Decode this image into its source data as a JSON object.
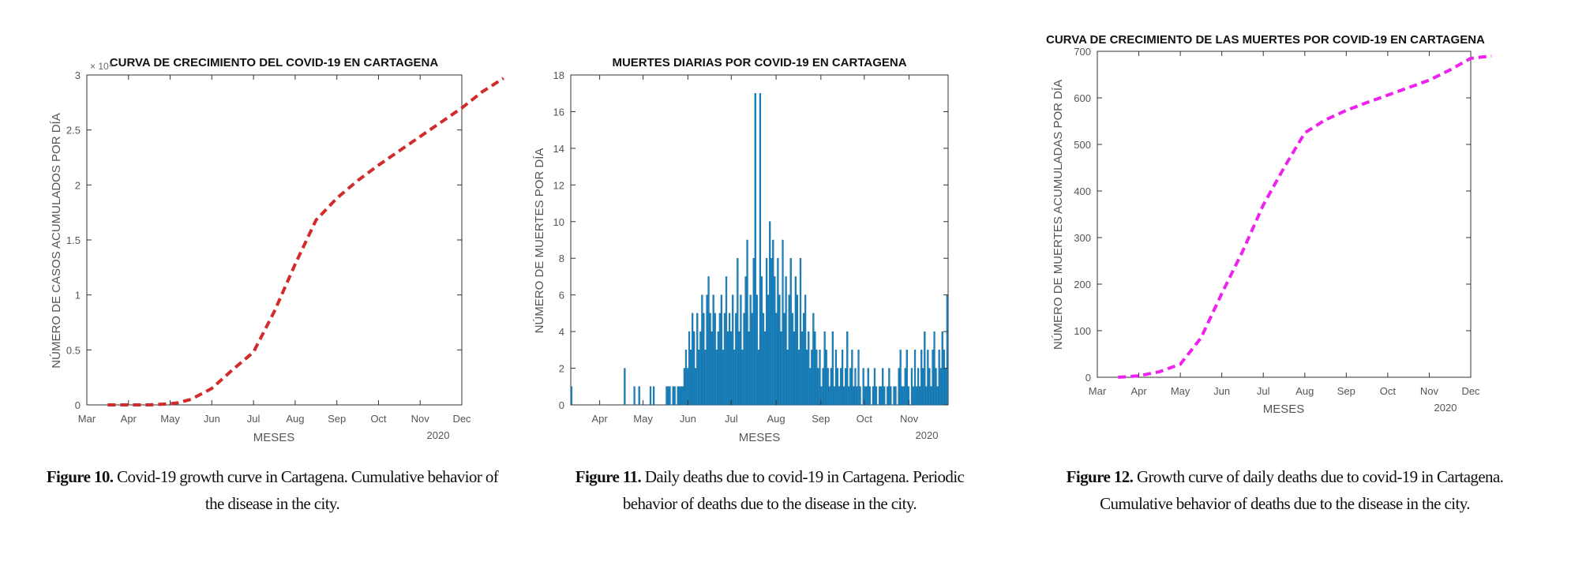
{
  "chart_data": [
    {
      "type": "line",
      "title": "CURVA DE CRECIMIENTO DEL COVID-19 EN CARTAGENA",
      "xlabel": "MESES",
      "ylabel": "NÚMERO DE CASOS ACUMULADOS POR DÍA",
      "x_ticks": [
        "Mar",
        "Apr",
        "May",
        "Jun",
        "Jul",
        "Aug",
        "Sep",
        "Oct",
        "Nov",
        "Dec"
      ],
      "x_year": "2020",
      "y_ticks": [
        "0",
        "0.5",
        "1",
        "1.5",
        "2",
        "2.5",
        "3"
      ],
      "y_exponent": "× 10⁴",
      "ylim": [
        0,
        3
      ],
      "color": "#d22b2b",
      "line_style": "dashed",
      "grid": false,
      "x": [
        0.5,
        1,
        1.5,
        2,
        2.2,
        2.5,
        3,
        3.5,
        4,
        4.5,
        5,
        5.5,
        6,
        6.5,
        7,
        7.5,
        8,
        8.5,
        9,
        9.5,
        10
      ],
      "y": [
        0,
        0,
        0,
        0.01,
        0.02,
        0.05,
        0.15,
        0.32,
        0.48,
        0.85,
        1.28,
        1.68,
        1.88,
        2.04,
        2.18,
        2.31,
        2.44,
        2.57,
        2.7,
        2.85,
        2.97
      ]
    },
    {
      "type": "bar",
      "title": "MUERTES DIARIAS POR COVID-19 EN CARTAGENA",
      "xlabel": "MESES",
      "ylabel": "NÚMERO DE MUERTES POR DÍA",
      "x_ticks": [
        "Apr",
        "May",
        "Jun",
        "Jul",
        "Aug",
        "Sep",
        "Oct",
        "Nov"
      ],
      "x_year": "2020",
      "y_ticks": [
        "0",
        "2",
        "4",
        "6",
        "8",
        "10",
        "12",
        "14",
        "16",
        "18"
      ],
      "ylim": [
        0,
        18
      ],
      "color": "#1a86c4",
      "grid": false,
      "values": [
        1,
        0,
        0,
        0,
        0,
        0,
        0,
        0,
        0,
        0,
        0,
        0,
        0,
        0,
        0,
        0,
        0,
        0,
        0,
        0,
        0,
        0,
        0,
        0,
        0,
        0,
        0,
        0,
        0,
        0,
        0,
        0,
        0,
        2,
        0,
        0,
        0,
        0,
        0,
        1,
        0,
        0,
        1,
        0,
        0,
        0,
        0,
        0,
        0,
        1,
        0,
        1,
        0,
        0,
        0,
        0,
        0,
        0,
        0,
        1,
        1,
        1,
        0,
        1,
        1,
        0,
        1,
        1,
        1,
        1,
        2,
        3,
        2,
        4,
        3,
        5,
        4,
        2,
        5,
        3,
        4,
        6,
        5,
        3,
        6,
        7,
        5,
        4,
        6,
        5,
        3,
        4,
        5,
        6,
        3,
        5,
        7,
        4,
        5,
        4,
        6,
        3,
        5,
        8,
        4,
        6,
        3,
        5,
        7,
        9,
        4,
        6,
        5,
        8,
        17,
        6,
        3,
        17,
        7,
        5,
        4,
        8,
        6,
        10,
        8,
        9,
        7,
        5,
        8,
        6,
        4,
        9,
        5,
        7,
        3,
        6,
        8,
        5,
        4,
        7,
        6,
        3,
        8,
        4,
        5,
        6,
        3,
        4,
        2,
        3,
        5,
        4,
        3,
        2,
        3,
        1,
        2,
        4,
        3,
        2,
        1,
        2,
        4,
        1,
        3,
        2,
        1,
        2,
        3,
        1,
        2,
        4,
        1,
        2,
        3,
        1,
        2,
        1,
        3,
        1,
        0,
        2,
        1,
        1,
        2,
        1,
        0,
        1,
        2,
        1,
        0,
        1,
        1,
        2,
        1,
        0,
        1,
        2,
        1,
        0,
        1,
        1,
        0,
        2,
        3,
        1,
        1,
        2,
        3,
        1,
        0,
        2,
        1,
        3,
        1,
        2,
        1,
        3,
        2,
        4,
        1,
        3,
        2,
        1,
        3,
        4,
        2,
        1,
        3,
        2,
        4,
        3,
        2,
        6
      ],
      "start": "2020-03-12",
      "end": "2020-11-28"
    },
    {
      "type": "line",
      "title": "CURVA DE CRECIMIENTO DE LAS MUERTES POR COVID-19 EN CARTAGENA",
      "xlabel": "MESES",
      "ylabel": "NÚMERO DE MUERTES ACUMULADAS POR DÍA",
      "x_ticks": [
        "Mar",
        "Apr",
        "May",
        "Jun",
        "Jul",
        "Aug",
        "Sep",
        "Oct",
        "Nov",
        "Dec"
      ],
      "x_year": "2020",
      "y_ticks": [
        "0",
        "100",
        "200",
        "300",
        "400",
        "500",
        "600",
        "700"
      ],
      "ylim": [
        0,
        700
      ],
      "color": "#ee22ee",
      "line_style": "dashed",
      "grid": false,
      "x": [
        0.5,
        1,
        1.5,
        2,
        2.5,
        3,
        3.5,
        4,
        4.5,
        5,
        5.5,
        6,
        6.5,
        7,
        7.5,
        8,
        8.5,
        9,
        9.5
      ],
      "y": [
        0,
        3,
        12,
        28,
        85,
        180,
        270,
        370,
        450,
        525,
        553,
        573,
        590,
        606,
        622,
        638,
        660,
        685,
        690
      ]
    }
  ],
  "captions": [
    {
      "label": "Figure 10.",
      "text": "Covid-19 growth curve in Cartagena. Cumulative behavior of the disease in the city."
    },
    {
      "label": "Figure 11.",
      "text": "Daily deaths due to covid-19 in Cartagena. Periodic behavior of deaths due to the disease in the city."
    },
    {
      "label": "Figure 12.",
      "text": "Growth curve of daily deaths due to covid-19 in Cartagena. Cumulative behavior of deaths due to the disease in the city."
    }
  ]
}
